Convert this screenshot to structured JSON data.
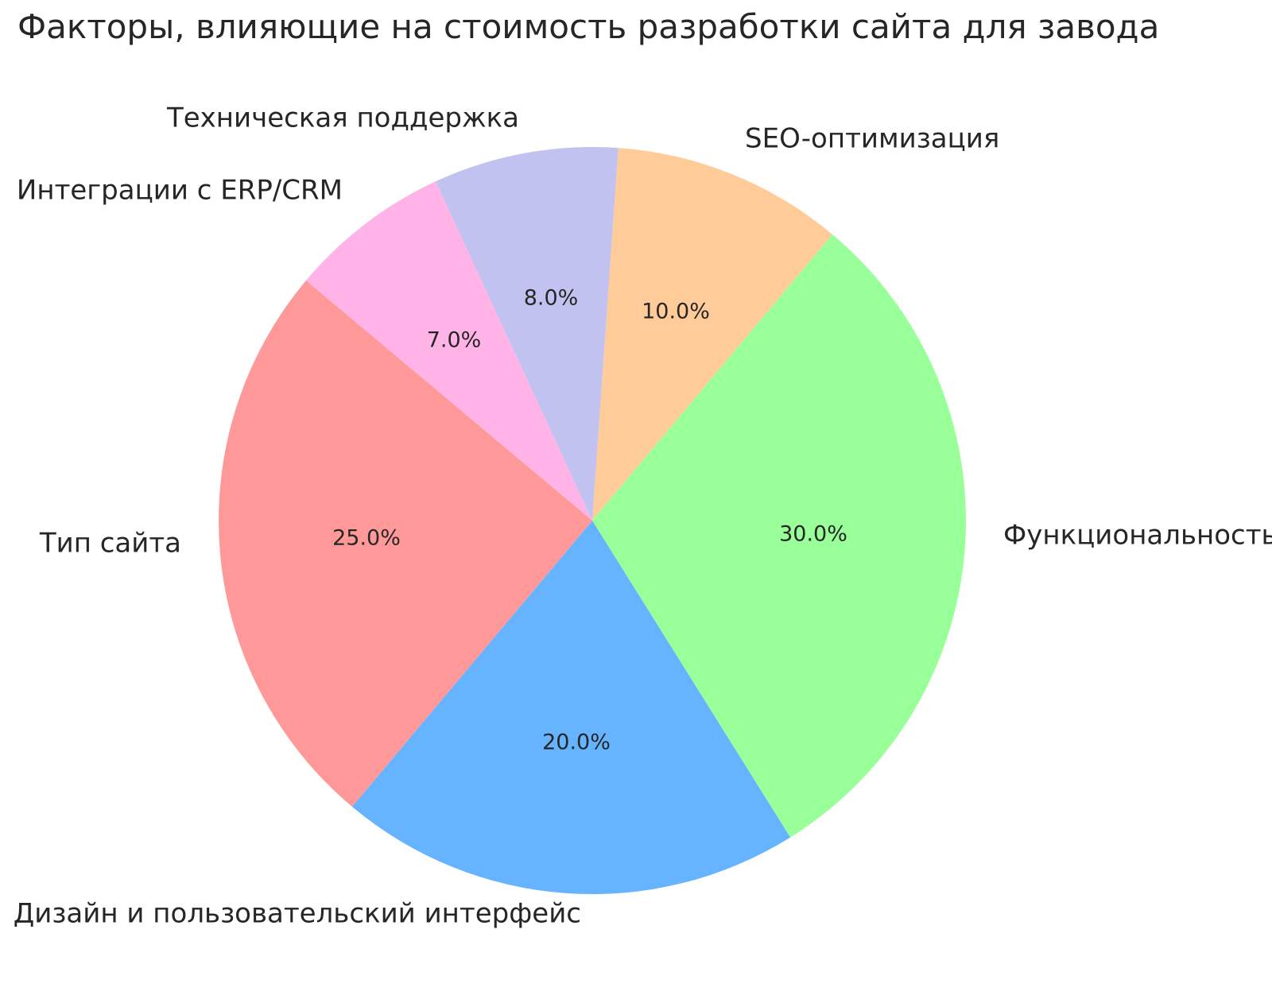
{
  "chart_data": {
    "type": "pie",
    "title": "Факторы, влияющие на стоимость разработки сайта для завода",
    "slices": [
      {
        "label": "SEO-оптимизация",
        "value": 10.0,
        "pct_text": "10.0%",
        "color": "#ffcc99"
      },
      {
        "label": "Функциональность",
        "value": 30.0,
        "pct_text": "30.0%",
        "color": "#99ff99"
      },
      {
        "label": "Дизайн и пользовательский интерфейс",
        "value": 20.0,
        "pct_text": "20.0%",
        "color": "#66b3ff"
      },
      {
        "label": "Тип сайта",
        "value": 25.0,
        "pct_text": "25.0%",
        "color": "#ff9999"
      },
      {
        "label": "Интеграции с ERP/CRM",
        "value": 7.0,
        "pct_text": "7.0%",
        "color": "#ffb3e6"
      },
      {
        "label": "Техническая поддержка",
        "value": 8.0,
        "pct_text": "8.0%",
        "color": "#c2c2f0"
      }
    ],
    "start_angle_deg_clockwise_from_top": 4,
    "direction": "clockwise",
    "value_labels": "percent, one decimal, inside slices",
    "category_labels": "outside slices, no legend box",
    "text_color": "#262626",
    "background_color": "#ffffff",
    "grid": "off",
    "axes": "none"
  }
}
